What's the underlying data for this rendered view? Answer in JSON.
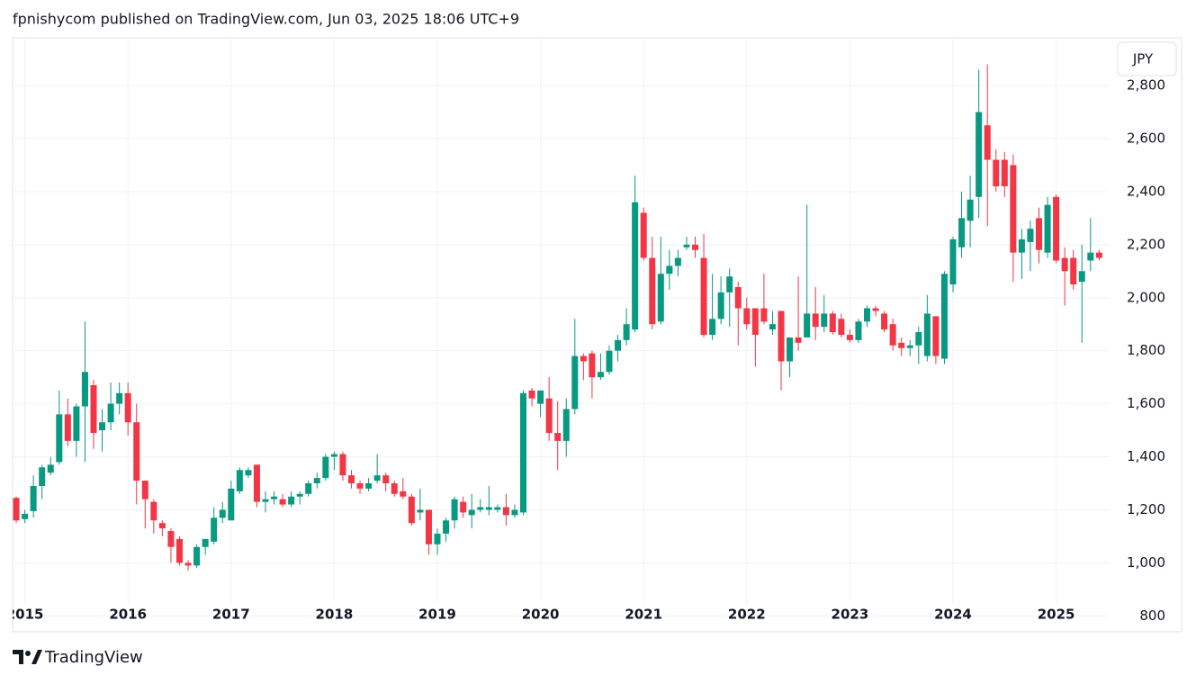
{
  "header": {
    "title": "fpnishycom published on TradingView.com, Jun 03, 2025 18:06 UTC+9"
  },
  "footer": {
    "brand": "TradingView"
  },
  "chart_data": {
    "type": "candlestick",
    "currency": "JPY",
    "up_color": "#089981",
    "down_color": "#f23645",
    "grid": true,
    "categories": [
      null,
      "2015",
      null,
      null,
      null,
      null,
      null,
      null,
      null,
      null,
      null,
      null,
      null,
      "2016",
      null,
      null,
      null,
      null,
      null,
      null,
      null,
      null,
      null,
      null,
      null,
      "2017",
      null,
      null,
      null,
      null,
      null,
      null,
      null,
      null,
      null,
      null,
      null,
      "2018",
      null,
      null,
      null,
      null,
      null,
      null,
      null,
      null,
      null,
      null,
      null,
      "2019",
      null,
      null,
      null,
      null,
      null,
      null,
      null,
      null,
      null,
      null,
      null,
      "2020",
      null,
      null,
      null,
      null,
      null,
      null,
      null,
      null,
      null,
      null,
      null,
      "2021",
      null,
      null,
      null,
      null,
      null,
      null,
      null,
      null,
      null,
      null,
      null,
      "2022",
      null,
      null,
      null,
      null,
      null,
      null,
      null,
      null,
      null,
      null,
      null,
      "2023",
      null,
      null,
      null,
      null,
      null,
      null,
      null,
      null,
      null,
      null,
      null,
      "2024",
      null,
      null,
      null,
      null,
      null,
      null,
      null,
      null,
      null,
      null,
      null,
      "2025",
      null,
      null,
      null,
      null,
      null
    ],
    "open": [
      1245,
      1165,
      1195,
      1290,
      1340,
      1380,
      1560,
      1460,
      1590,
      1670,
      1500,
      1530,
      1600,
      1640,
      1530,
      1310,
      1230,
      1150,
      1120,
      1090,
      1000,
      990,
      1060,
      1080,
      1170,
      1160,
      1270,
      1330,
      1370,
      1230,
      1240,
      1240,
      1220,
      1250,
      1260,
      1300,
      1320,
      1400,
      1410,
      1330,
      1300,
      1280,
      1310,
      1330,
      1300,
      1270,
      1250,
      1190,
      1200,
      1070,
      1110,
      1160,
      1230,
      1180,
      1200,
      1200,
      1200,
      1210,
      1180,
      1190,
      1650,
      1600,
      1620,
      1490,
      1460,
      1580,
      1780,
      1790,
      1700,
      1720,
      1800,
      1840,
      1880,
      2320,
      2150,
      1910,
      2090,
      2120,
      2190,
      2200,
      2150,
      1860,
      1920,
      2020,
      2040,
      1960,
      1960,
      1960,
      1880,
      1950,
      1760,
      1850,
      1850,
      1940,
      1890,
      1940,
      1920,
      1860,
      1840,
      1910,
      1960,
      1940,
      1900,
      1830,
      1810,
      1820,
      1780,
      1930,
      1770,
      2050,
      2190,
      2290,
      2380,
      2650,
      2520,
      2520,
      2500,
      2170,
      2210,
      2300,
      2170,
      2380,
      2150,
      2150,
      2060,
      2140,
      2170
    ],
    "high": [
      1250,
      1200,
      1330,
      1370,
      1400,
      1650,
      1620,
      1600,
      1910,
      1690,
      1580,
      1680,
      1680,
      1680,
      1600,
      1300,
      1240,
      1160,
      1130,
      1100,
      1010,
      1070,
      1090,
      1210,
      1230,
      1310,
      1360,
      1360,
      1370,
      1270,
      1270,
      1260,
      1270,
      1270,
      1310,
      1340,
      1410,
      1420,
      1420,
      1350,
      1310,
      1320,
      1410,
      1340,
      1310,
      1320,
      1260,
      1280,
      1200,
      1130,
      1170,
      1250,
      1250,
      1260,
      1240,
      1290,
      1220,
      1260,
      1220,
      1650,
      1660,
      1650,
      1700,
      1610,
      1620,
      1920,
      1790,
      1800,
      1790,
      1820,
      1860,
      1960,
      2460,
      2340,
      2230,
      2230,
      2180,
      2180,
      2230,
      2230,
      2240,
      2090,
      2080,
      2110,
      2060,
      2000,
      1960,
      2090,
      1950,
      1950,
      1850,
      2080,
      2350,
      2040,
      2010,
      1950,
      1940,
      1880,
      1920,
      1970,
      1970,
      1950,
      1920,
      1850,
      1840,
      1890,
      2010,
      1930,
      2100,
      2230,
      2400,
      2460,
      2860,
      2880,
      2560,
      2550,
      2540,
      2260,
      2290,
      2340,
      2380,
      2390,
      2190,
      2180,
      2200,
      2300,
      2180
    ],
    "low": [
      1150,
      1150,
      1170,
      1240,
      1330,
      1370,
      1440,
      1400,
      1380,
      1430,
      1420,
      1500,
      1560,
      1480,
      1220,
      1130,
      1110,
      1100,
      1000,
      990,
      970,
      980,
      1030,
      1070,
      1150,
      1160,
      1260,
      1320,
      1210,
      1190,
      1220,
      1210,
      1210,
      1220,
      1250,
      1280,
      1310,
      1350,
      1310,
      1280,
      1260,
      1270,
      1300,
      1270,
      1250,
      1240,
      1140,
      1160,
      1030,
      1030,
      1080,
      1130,
      1170,
      1130,
      1190,
      1180,
      1190,
      1140,
      1170,
      1180,
      1590,
      1550,
      1460,
      1350,
      1400,
      1560,
      1690,
      1620,
      1690,
      1710,
      1760,
      1820,
      1870,
      2140,
      1880,
      1900,
      2030,
      2080,
      2180,
      2150,
      1850,
      1840,
      1900,
      1890,
      1820,
      1880,
      1740,
      1900,
      1860,
      1650,
      1700,
      1800,
      1850,
      1840,
      1870,
      1860,
      1850,
      1830,
      1830,
      1890,
      1930,
      1870,
      1800,
      1780,
      1780,
      1750,
      1760,
      1750,
      1750,
      2020,
      2150,
      2190,
      2300,
      2270,
      2400,
      2380,
      2060,
      2070,
      2100,
      2130,
      2150,
      2130,
      1970,
      2030,
      1830,
      2100,
      2140
    ],
    "close": [
      1160,
      1185,
      1290,
      1360,
      1370,
      1560,
      1460,
      1590,
      1720,
      1490,
      1530,
      1600,
      1640,
      1530,
      1310,
      1240,
      1160,
      1130,
      1060,
      1000,
      990,
      1060,
      1090,
      1170,
      1200,
      1280,
      1350,
      1350,
      1230,
      1240,
      1250,
      1220,
      1250,
      1260,
      1300,
      1320,
      1400,
      1410,
      1330,
      1300,
      1280,
      1300,
      1330,
      1300,
      1260,
      1250,
      1150,
      1200,
      1070,
      1110,
      1160,
      1240,
      1190,
      1200,
      1210,
      1210,
      1210,
      1180,
      1200,
      1640,
      1620,
      1650,
      1490,
      1460,
      1580,
      1780,
      1760,
      1700,
      1720,
      1800,
      1840,
      1900,
      2360,
      2150,
      1900,
      2090,
      2120,
      2150,
      2200,
      2180,
      1860,
      1920,
      2020,
      2080,
      1960,
      1900,
      1860,
      1910,
      1900,
      1760,
      1850,
      1830,
      1940,
      1890,
      1940,
      1870,
      1860,
      1840,
      1910,
      1960,
      1950,
      1880,
      1820,
      1810,
      1820,
      1870,
      1940,
      1780,
      2090,
      2220,
      2300,
      2370,
      2700,
      2520,
      2420,
      2420,
      2170,
      2220,
      2260,
      2180,
      2350,
      2140,
      2100,
      2050,
      2100,
      2170,
      2150
    ],
    "ylim": [
      740,
      2980
    ],
    "yticks": [
      800,
      {
        "value": 1000,
        "label": "1,000"
      },
      {
        "value": 1200,
        "label": "1,200"
      },
      {
        "value": 1400,
        "label": "1,400"
      },
      {
        "value": 1600,
        "label": "1,600"
      },
      {
        "value": 1800,
        "label": "1,800"
      },
      {
        "value": 2000,
        "label": "2,000"
      },
      {
        "value": 2200,
        "label": "2,200"
      },
      {
        "value": 2400,
        "label": "2,400"
      },
      {
        "value": 2600,
        "label": "2,600"
      },
      {
        "value": 2800,
        "label": "2,800"
      }
    ]
  }
}
